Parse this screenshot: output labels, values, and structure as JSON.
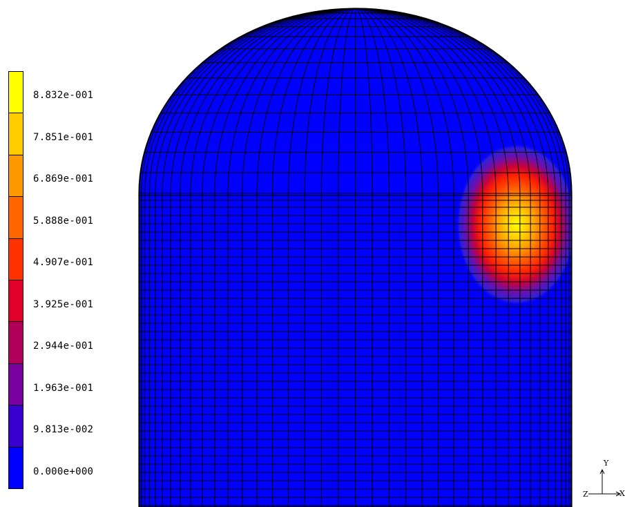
{
  "legend": {
    "labels": [
      "8.832e-001",
      "7.851e-001",
      "6.869e-001",
      "5.888e-001",
      "4.907e-001",
      "3.925e-001",
      "2.944e-001",
      "1.963e-001",
      "9.813e-002",
      "0.000e+000"
    ],
    "colors": [
      "#ffff00",
      "#ffcc00",
      "#ff9900",
      "#ff6600",
      "#ff3300",
      "#e0002a",
      "#b0005a",
      "#7a00a0",
      "#3a00d0",
      "#0000ff"
    ]
  },
  "axes": {
    "x": "X",
    "y": "Y",
    "z": "Z"
  },
  "colors": {
    "background": "#ffffff",
    "mesh_line": "#000000",
    "base_fill": "#0000ff"
  }
}
